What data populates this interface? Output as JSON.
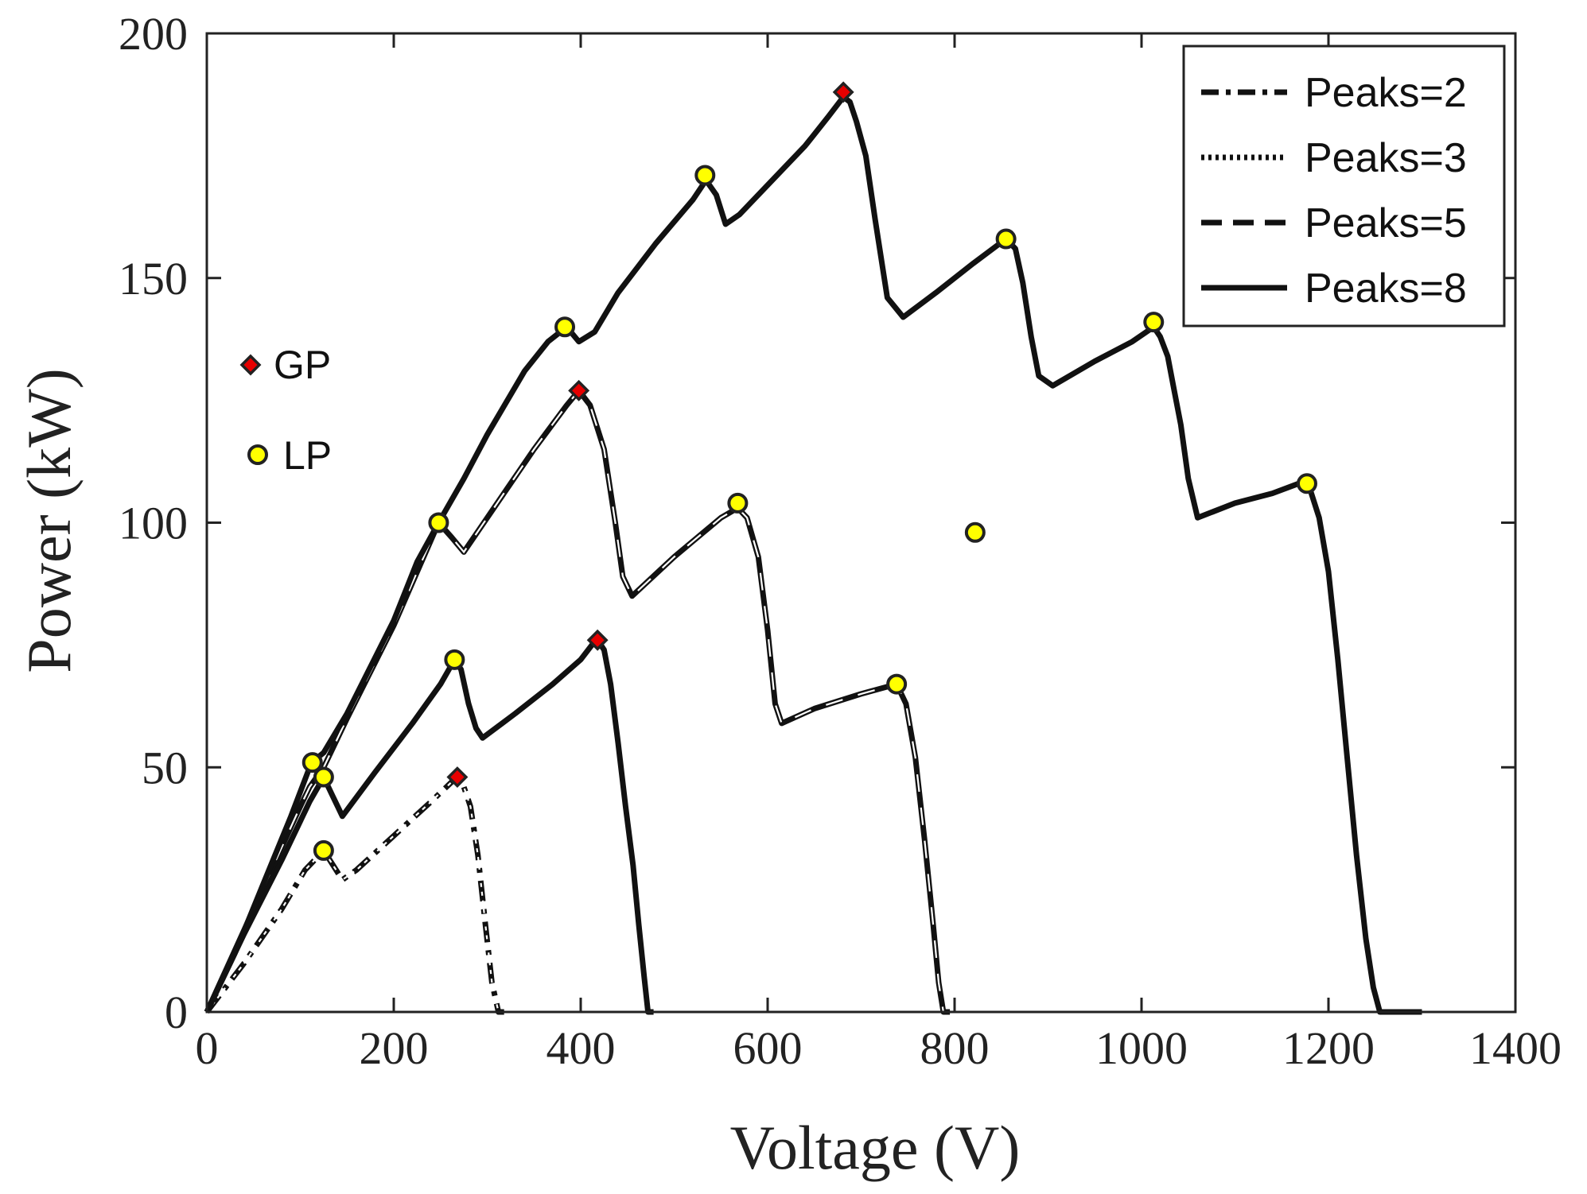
{
  "chart_data": {
    "type": "line",
    "title": "",
    "xlabel": "Voltage (V)",
    "ylabel": "Power (kW)",
    "xlim": [
      0,
      1400
    ],
    "ylim": [
      0,
      200
    ],
    "xticks": [
      0,
      200,
      400,
      600,
      800,
      1000,
      1200,
      1400
    ],
    "yticks": [
      0,
      50,
      100,
      150,
      200
    ],
    "grid": false,
    "legend_position": "top-right",
    "series": [
      {
        "name": "Peaks=2",
        "style": "dashdot",
        "points": [
          [
            0,
            0
          ],
          [
            40,
            10
          ],
          [
            80,
            21
          ],
          [
            105,
            29
          ],
          [
            125,
            33
          ],
          [
            135,
            30
          ],
          [
            145,
            27
          ],
          [
            160,
            29
          ],
          [
            200,
            36
          ],
          [
            240,
            43
          ],
          [
            262,
            47
          ],
          [
            268,
            48
          ],
          [
            275,
            46
          ],
          [
            282,
            42
          ],
          [
            290,
            32
          ],
          [
            298,
            18
          ],
          [
            305,
            6
          ],
          [
            312,
            0
          ],
          [
            318,
            0
          ]
        ]
      },
      {
        "name": "Peaks=3",
        "style": "dotted",
        "points": [
          [
            0,
            0
          ],
          [
            40,
            10
          ],
          [
            80,
            21
          ],
          [
            105,
            29
          ],
          [
            125,
            33
          ],
          [
            135,
            30
          ],
          [
            145,
            27
          ],
          [
            160,
            29
          ],
          [
            200,
            36
          ],
          [
            240,
            43
          ],
          [
            262,
            47
          ],
          [
            268,
            48
          ],
          [
            275,
            46
          ],
          [
            282,
            42
          ],
          [
            290,
            32
          ],
          [
            298,
            18
          ],
          [
            305,
            6
          ],
          [
            312,
            0
          ],
          [
            318,
            0
          ]
        ]
      },
      {
        "name": "Peaks=5",
        "style": "dashed",
        "points": [
          [
            0,
            0
          ],
          [
            50,
            21
          ],
          [
            100,
            42
          ],
          [
            110,
            46
          ],
          [
            125,
            50
          ],
          [
            150,
            60
          ],
          [
            200,
            79
          ],
          [
            248,
            100
          ],
          [
            262,
            97
          ],
          [
            275,
            94
          ],
          [
            300,
            101
          ],
          [
            350,
            115
          ],
          [
            385,
            124
          ],
          [
            398,
            127
          ],
          [
            410,
            124
          ],
          [
            425,
            115
          ],
          [
            437,
            100
          ],
          [
            445,
            89
          ],
          [
            455,
            85
          ],
          [
            500,
            93
          ],
          [
            550,
            101
          ],
          [
            568,
            103
          ],
          [
            578,
            101
          ],
          [
            590,
            93
          ],
          [
            600,
            78
          ],
          [
            608,
            63
          ],
          [
            615,
            59
          ],
          [
            650,
            62
          ],
          [
            700,
            65
          ],
          [
            738,
            67
          ],
          [
            748,
            63
          ],
          [
            758,
            52
          ],
          [
            768,
            35
          ],
          [
            777,
            18
          ],
          [
            783,
            6
          ],
          [
            788,
            0
          ],
          [
            795,
            0
          ]
        ]
      },
      {
        "name": "Peaks=8",
        "style": "solid",
        "points": [
          [
            0,
            0
          ],
          [
            30,
            12
          ],
          [
            60,
            26
          ],
          [
            90,
            40
          ],
          [
            112,
            51
          ],
          [
            125,
            53
          ],
          [
            150,
            61
          ],
          [
            200,
            80
          ],
          [
            225,
            92
          ],
          [
            248,
            100
          ],
          [
            275,
            109
          ],
          [
            300,
            118
          ],
          [
            340,
            131
          ],
          [
            365,
            137
          ],
          [
            385,
            140
          ],
          [
            398,
            137
          ],
          [
            415,
            139
          ],
          [
            440,
            147
          ],
          [
            480,
            157
          ],
          [
            520,
            166
          ],
          [
            534,
            170
          ],
          [
            545,
            167
          ],
          [
            555,
            161
          ],
          [
            570,
            163
          ],
          [
            600,
            169
          ],
          [
            640,
            177
          ],
          [
            665,
            183
          ],
          [
            681,
            187
          ],
          [
            688,
            186
          ],
          [
            695,
            182
          ],
          [
            705,
            175
          ],
          [
            715,
            162
          ],
          [
            728,
            146
          ],
          [
            745,
            142
          ],
          [
            780,
            147
          ],
          [
            820,
            153
          ],
          [
            855,
            158
          ],
          [
            865,
            156
          ],
          [
            873,
            149
          ],
          [
            882,
            138
          ],
          [
            890,
            130
          ],
          [
            905,
            128
          ],
          [
            950,
            133
          ],
          [
            990,
            137
          ],
          [
            1013,
            140
          ],
          [
            1020,
            138
          ],
          [
            1028,
            134
          ],
          [
            1035,
            127
          ],
          [
            1042,
            120
          ],
          [
            1050,
            109
          ],
          [
            1060,
            101
          ],
          [
            1100,
            104
          ],
          [
            1140,
            106
          ],
          [
            1168,
            108
          ],
          [
            1180,
            107
          ],
          [
            1190,
            101
          ],
          [
            1200,
            90
          ],
          [
            1210,
            72
          ],
          [
            1220,
            52
          ],
          [
            1230,
            32
          ],
          [
            1240,
            15
          ],
          [
            1248,
            5
          ],
          [
            1255,
            0
          ],
          [
            1280,
            0
          ],
          [
            1300,
            0
          ]
        ]
      }
    ],
    "markers": {
      "GP": [
        [
          268,
          48
        ],
        [
          398,
          127
        ],
        [
          418,
          76
        ],
        [
          681,
          188
        ]
      ],
      "LP": [
        [
          125,
          33
        ],
        [
          125,
          48
        ],
        [
          113,
          51
        ],
        [
          265,
          72
        ],
        [
          248,
          100
        ],
        [
          383,
          140
        ],
        [
          533,
          171
        ],
        [
          568,
          104
        ],
        [
          738,
          67
        ],
        [
          822,
          98
        ],
        [
          855,
          158
        ],
        [
          1013,
          141
        ],
        [
          1177,
          108
        ]
      ]
    },
    "extra_line": {
      "name": "unlabeled",
      "style": "solid",
      "points": [
        [
          0,
          0
        ],
        [
          40,
          16
        ],
        [
          80,
          31
        ],
        [
          110,
          43
        ],
        [
          125,
          48
        ],
        [
          135,
          44
        ],
        [
          145,
          40
        ],
        [
          180,
          49
        ],
        [
          220,
          59
        ],
        [
          250,
          67
        ],
        [
          265,
          72
        ],
        [
          272,
          70
        ],
        [
          280,
          63
        ],
        [
          288,
          58
        ],
        [
          295,
          56
        ],
        [
          330,
          61
        ],
        [
          370,
          67
        ],
        [
          400,
          72
        ],
        [
          412,
          75
        ],
        [
          418,
          76
        ],
        [
          425,
          74
        ],
        [
          432,
          67
        ],
        [
          440,
          55
        ],
        [
          448,
          42
        ],
        [
          456,
          30
        ],
        [
          462,
          18
        ],
        [
          468,
          7
        ],
        [
          472,
          0
        ],
        [
          478,
          0
        ]
      ]
    },
    "inline_labels": {
      "gp": "GP",
      "lp": "LP"
    },
    "colors": {
      "line": "#111111",
      "gp_fill": "#e60000",
      "lp_fill": "#ffff00",
      "marker_edge": "#222222"
    }
  }
}
